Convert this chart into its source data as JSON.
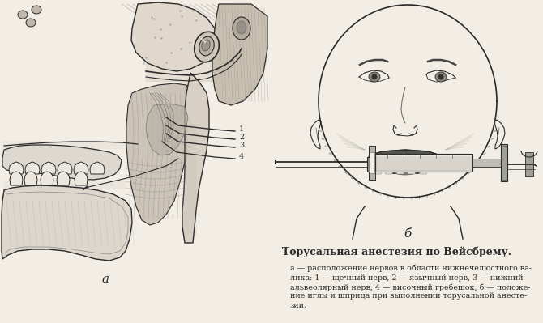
{
  "background_color": "#f2ede5",
  "fig_width": 6.7,
  "fig_height": 3.99,
  "dpi": 100,
  "left_label": "а",
  "right_label": "б",
  "title": "Торусальная анестезия по Вейсбрему.",
  "caption_line1": "а — расположение нервов в области нижнечелюстного ва-",
  "caption_line2": "лика: 1 — щечный нерв, 2 — язычный нерв, 3 — нижний",
  "caption_line3": "альвеолярный нерв, 4 — височный гребешок; б — положе-",
  "caption_line4": "ние иглы и шприца при выполнении торусальной анесте-",
  "caption_line5": "зии.",
  "line_color": "#2a2a2a",
  "dark_fill": "#888888",
  "medium_fill": "#b0a898",
  "light_fill": "#d8d2c8"
}
